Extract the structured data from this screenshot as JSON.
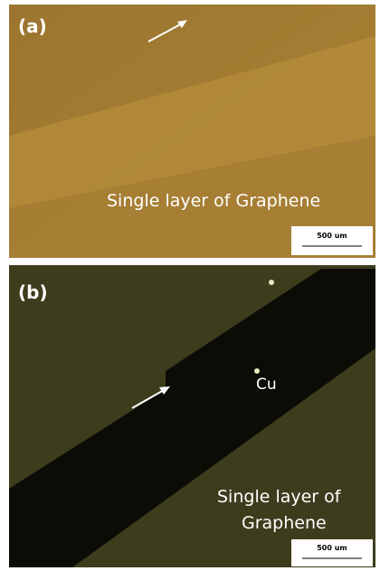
{
  "panels": [
    {
      "label": "(a)",
      "caption_lines": [
        "Single layer of Graphene"
      ],
      "scale_bar": "500 um"
    },
    {
      "label": "(b)",
      "marker": "Cu",
      "caption_lines": [
        "Single layer of",
        "Graphene"
      ],
      "scale_bar": "500 um"
    }
  ]
}
